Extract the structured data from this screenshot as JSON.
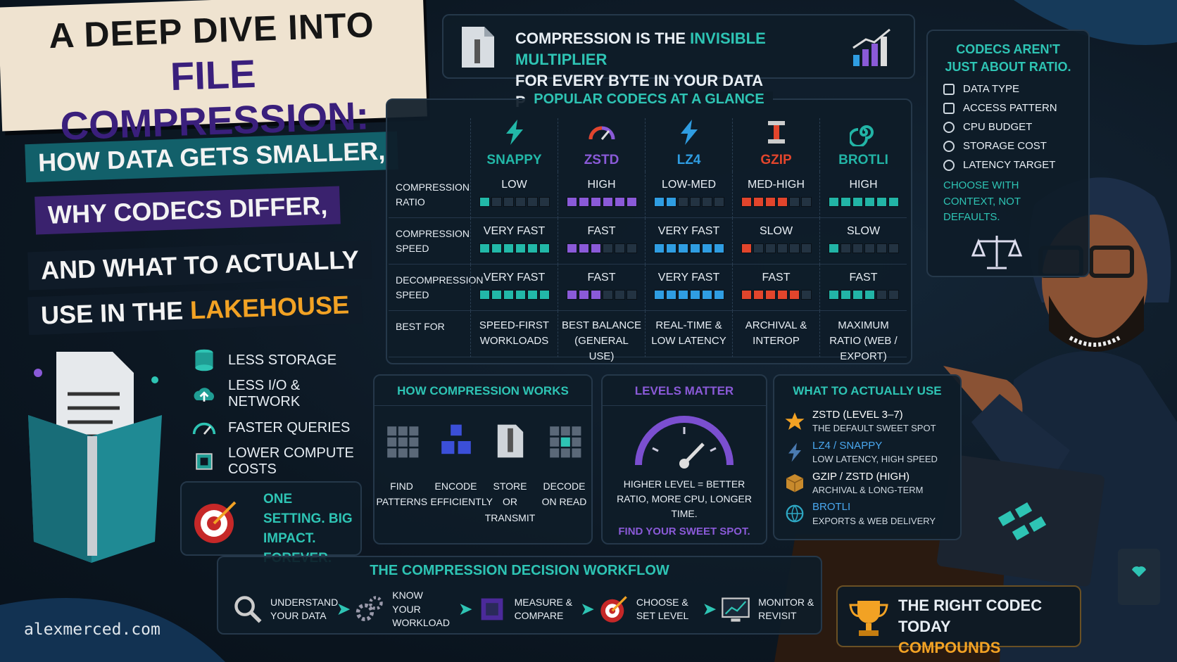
{
  "title": {
    "line1": "A DEEP DIVE INTO",
    "line2": "FILE COMPRESSION:",
    "sub1": "HOW DATA GETS SMALLER,",
    "sub2": "WHY CODECS DIFFER,",
    "sub3": "AND WHAT TO ACTUALLY",
    "sub4": "USE IN THE",
    "sub4_highlight": "LAKEHOUSE"
  },
  "banner": {
    "pre": "COMPRESSION IS THE",
    "highlight": "INVISIBLE MULTIPLIER",
    "post": "FOR EVERY BYTE IN YOUR DATA PLATFORM."
  },
  "codecs": {
    "title": "POPULAR CODECS AT A GLANCE",
    "bar_max": 6,
    "columns": [
      {
        "name": "SNAPPY",
        "color": "#22b8a8"
      },
      {
        "name": "ZSTD",
        "color": "#8a5ad8"
      },
      {
        "name": "LZ4",
        "color": "#2f9de2"
      },
      {
        "name": "GZIP",
        "color": "#e2452c"
      },
      {
        "name": "BROTLI",
        "color": "#22b4a6"
      }
    ],
    "rows": [
      {
        "label": "COMPRESSION RATIO",
        "cells": [
          {
            "text": "LOW",
            "level": 1
          },
          {
            "text": "HIGH",
            "level": 6
          },
          {
            "text": "LOW-MED",
            "level": 2
          },
          {
            "text": "MED-HIGH",
            "level": 4
          },
          {
            "text": "HIGH",
            "level": 6
          }
        ]
      },
      {
        "label": "COMPRESSION SPEED",
        "cells": [
          {
            "text": "VERY FAST",
            "level": 6
          },
          {
            "text": "FAST",
            "level": 3
          },
          {
            "text": "VERY FAST",
            "level": 6
          },
          {
            "text": "SLOW",
            "level": 1
          },
          {
            "text": "SLOW",
            "level": 1
          }
        ]
      },
      {
        "label": "DECOMPRESSION SPEED",
        "cells": [
          {
            "text": "VERY FAST",
            "level": 6
          },
          {
            "text": "FAST",
            "level": 3
          },
          {
            "text": "VERY FAST",
            "level": 6
          },
          {
            "text": "FAST",
            "level": 5
          },
          {
            "text": "FAST",
            "level": 4
          }
        ]
      },
      {
        "label": "BEST FOR",
        "cells": [
          {
            "text": "SPEED-FIRST WORKLOADS"
          },
          {
            "text": "BEST BALANCE (GENERAL USE)"
          },
          {
            "text": "REAL-TIME & LOW LATENCY"
          },
          {
            "text": "ARCHIVAL & INTEROP"
          },
          {
            "text": "MAXIMUM RATIO (WEB / EXPORT)"
          }
        ]
      }
    ]
  },
  "sidebar": {
    "title": "CODECS AREN'T JUST ABOUT RATIO.",
    "items": [
      "DATA TYPE",
      "ACCESS PATTERN",
      "CPU BUDGET",
      "STORAGE COST",
      "LATENCY TARGET"
    ],
    "note": "CHOOSE WITH CONTEXT, NOT DEFAULTS."
  },
  "benefits": [
    "LESS STORAGE",
    "LESS I/O & NETWORK",
    "FASTER QUERIES",
    "LOWER COMPUTE COSTS"
  ],
  "impact": "ONE SETTING. BIG IMPACT. FOREVER.",
  "how_it_works": {
    "title": "HOW COMPRESSION WORKS",
    "steps": [
      "FIND PATTERNS",
      "ENCODE EFFICIENTLY",
      "STORE OR TRANSMIT",
      "DECODE ON READ"
    ]
  },
  "levels": {
    "title": "LEVELS MATTER",
    "text": "HIGHER LEVEL = BETTER RATIO, MORE CPU, LONGER TIME.",
    "cta": "FIND YOUR SWEET SPOT."
  },
  "what_to_use": {
    "title": "WHAT TO ACTUALLY USE",
    "items": [
      {
        "name": "ZSTD (LEVEL 3–7)",
        "desc": "THE DEFAULT SWEET SPOT",
        "color": "#ffffff"
      },
      {
        "name": "LZ4 / SNAPPY",
        "desc": "LOW LATENCY, HIGH SPEED",
        "color": "#4aa8f0"
      },
      {
        "name": "GZIP / ZSTD (HIGH)",
        "desc": "ARCHIVAL & LONG-TERM",
        "color": "#ffffff"
      },
      {
        "name": "BROTLI",
        "desc": "EXPORTS & WEB DELIVERY",
        "color": "#4aa8f0"
      }
    ]
  },
  "workflow": {
    "title": "THE COMPRESSION DECISION WORKFLOW",
    "steps": [
      "UNDERSTAND YOUR DATA",
      "KNOW YOUR WORKLOAD",
      "MEASURE & COMPARE",
      "CHOOSE & SET LEVEL",
      "MONITOR & REVISIT"
    ]
  },
  "footer": {
    "site": "alexmerced.com",
    "closing_1": "THE RIGHT CODEC TODAY",
    "closing_2": "COMPOUNDS FOREVER."
  }
}
